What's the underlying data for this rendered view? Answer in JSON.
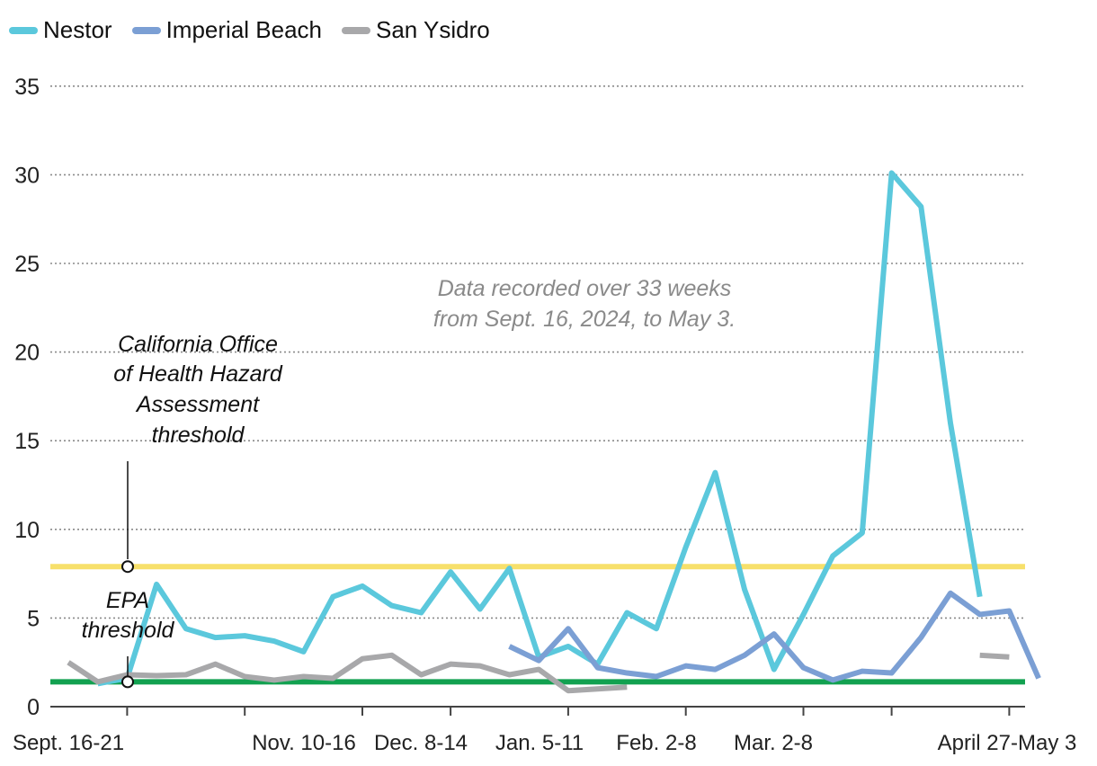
{
  "chart_data": {
    "type": "line",
    "ylim": [
      0,
      35
    ],
    "y_ticks": [
      0,
      5,
      10,
      15,
      20,
      25,
      30,
      35
    ],
    "x_tick_labels": [
      "Sept. 16-21",
      "Nov. 10-16",
      "Dec. 8-14",
      "Jan. 5-11",
      "Feb. 2-8",
      "Mar. 2-8",
      "April 27-May 3"
    ],
    "grid": true,
    "legend_position": "top-left",
    "annotation": [
      "Data recorded over 33 weeks",
      "from Sept. 16, 2024, to May 3."
    ],
    "thresholds": [
      {
        "label": [
          "California Office",
          "of Health Hazard",
          "Assessment",
          "threshold"
        ],
        "value": 7.9,
        "color": "#f7e06b"
      },
      {
        "label": [
          "EPA",
          "threshold"
        ],
        "value": 1.4,
        "color": "#12a150"
      }
    ],
    "series": [
      {
        "name": "Nestor",
        "color": "#5bc8dc",
        "start_week": 1,
        "values": [
          1.3,
          1.6,
          6.9,
          4.4,
          3.9,
          4.0,
          3.7,
          3.1,
          6.2,
          6.8,
          5.7,
          5.3,
          7.6,
          5.5,
          7.8,
          2.8,
          3.4,
          2.4,
          5.3,
          4.4,
          9.0,
          13.2,
          6.6,
          2.1,
          5.2,
          8.5,
          9.8,
          30.1,
          28.2,
          16.0,
          6.2
        ]
      },
      {
        "name": "Imperial Beach",
        "color": "#7b9fd4",
        "start_week": 15,
        "values": [
          3.4,
          2.6,
          4.4,
          2.2,
          1.9,
          1.7,
          2.3,
          2.1,
          2.9,
          4.1,
          2.2,
          1.5,
          2.0,
          1.9,
          3.9,
          6.4,
          5.2,
          5.4,
          1.6
        ]
      },
      {
        "name": "San Ysidro",
        "color": "#a8a8aa",
        "start_week": 0,
        "values": [
          2.5,
          1.4,
          1.8,
          1.75,
          1.8,
          2.4,
          1.7,
          1.5,
          1.7,
          1.6,
          2.7,
          2.9,
          1.8,
          2.4,
          2.3,
          1.8,
          2.1,
          0.9,
          1.0,
          1.1,
          null,
          null,
          null,
          null,
          null,
          null,
          null,
          null,
          null,
          null,
          null,
          2.9,
          2.8
        ]
      }
    ]
  }
}
